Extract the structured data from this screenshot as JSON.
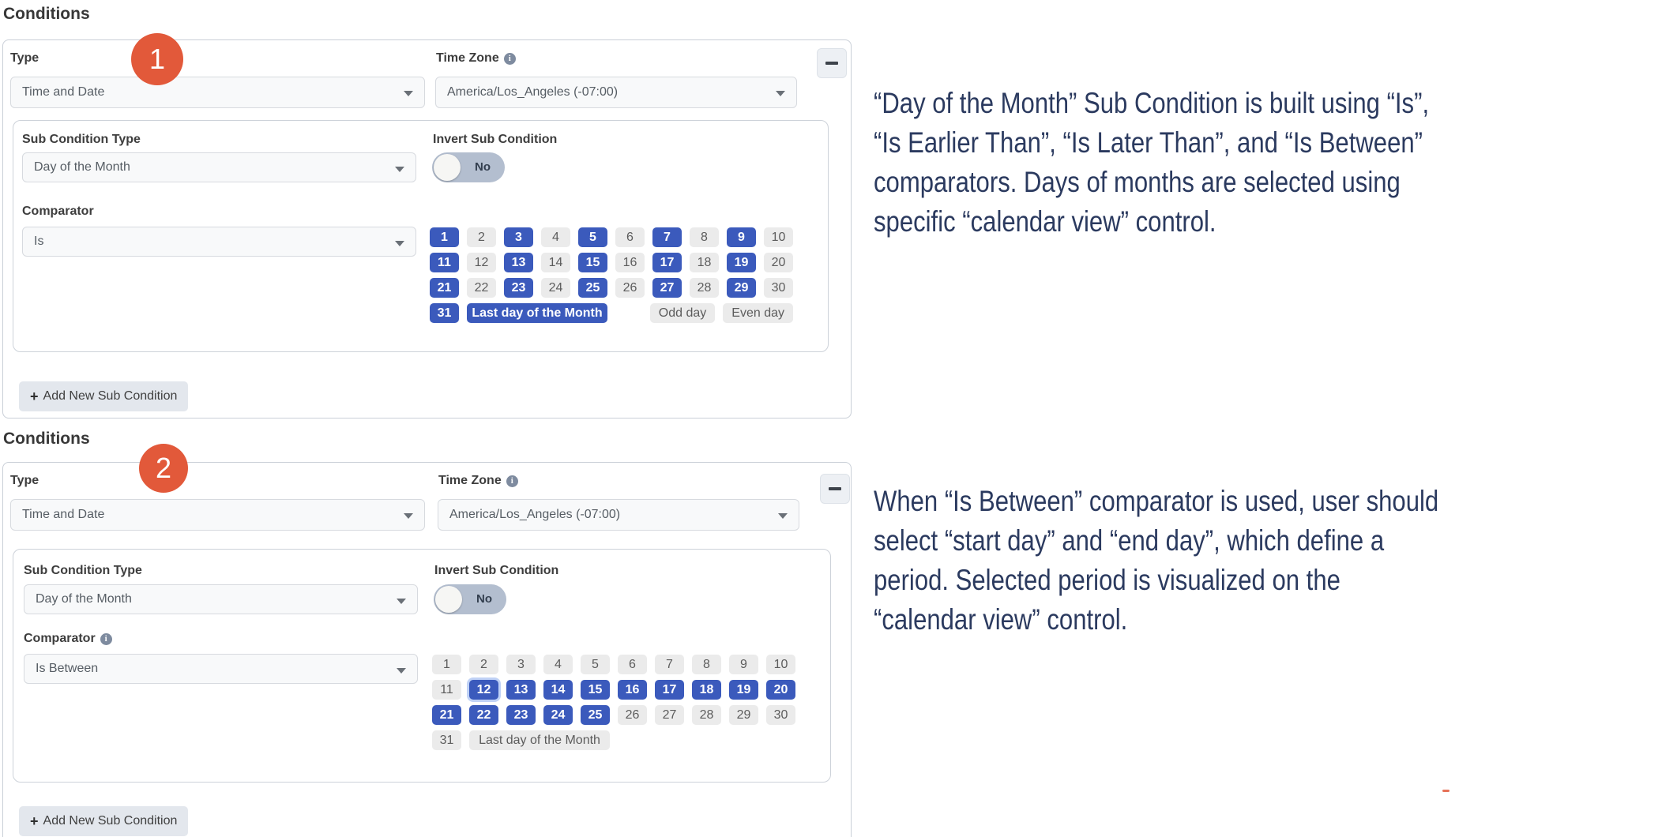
{
  "colors": {
    "accent_blue": "#3b5abc",
    "badge_orange": "#e2593a",
    "note_navy": "#2b3a5f"
  },
  "sections": [
    {
      "heading": "Conditions",
      "badge": "1",
      "fields": {
        "type_label": "Type",
        "type_value": "Time and Date",
        "timezone_label": "Time Zone",
        "timezone_value": "America/Los_Angeles (-07:00)"
      },
      "sub_condition": {
        "type_label": "Sub Condition Type",
        "type_value": "Day of the Month",
        "invert_label": "Invert Sub Condition",
        "invert_value": "No",
        "comparator_label": "Comparator",
        "comparator_value": "Is",
        "calendar": {
          "selected_days": [
            1,
            3,
            5,
            7,
            9,
            11,
            13,
            15,
            17,
            19,
            21,
            23,
            25,
            27,
            29,
            31
          ],
          "focused_day": null,
          "last_day_label": "Last day of the Month",
          "last_day_selected": true,
          "extra_buttons": [
            {
              "label": "Odd day",
              "selected": false
            },
            {
              "label": "Even day",
              "selected": false
            }
          ]
        }
      },
      "add_button_label": "Add New Sub Condition"
    },
    {
      "heading": "Conditions",
      "badge": "2",
      "fields": {
        "type_label": "Type",
        "type_value": "Time and Date",
        "timezone_label": "Time Zone",
        "timezone_value": "America/Los_Angeles (-07:00)"
      },
      "sub_condition": {
        "type_label": "Sub Condition Type",
        "type_value": "Day of the Month",
        "invert_label": "Invert Sub Condition",
        "invert_value": "No",
        "comparator_label": "Comparator",
        "comparator_value": "Is Between",
        "calendar": {
          "selected_days": [
            12,
            13,
            14,
            15,
            16,
            17,
            18,
            19,
            20,
            21,
            22,
            23,
            24,
            25
          ],
          "focused_day": 12,
          "last_day_label": "Last day of the Month",
          "last_day_selected": false,
          "extra_buttons": []
        }
      },
      "add_button_label": "Add New Sub Condition"
    }
  ],
  "notes": [
    {
      "lines": [
        "“Day of the Month” Sub Condition is built using “Is”,",
        "“Is Earlier Than”, “Is Later Than”, and “Is Between”",
        "comparators. Days of months are selected using",
        "specific “calendar view” control."
      ]
    },
    {
      "lines": [
        "When “Is Between” comparator is used, user should",
        "select “start day” and “end day”, which define a",
        "period. Selected period is visualized on the",
        "“calendar view” control."
      ]
    }
  ]
}
